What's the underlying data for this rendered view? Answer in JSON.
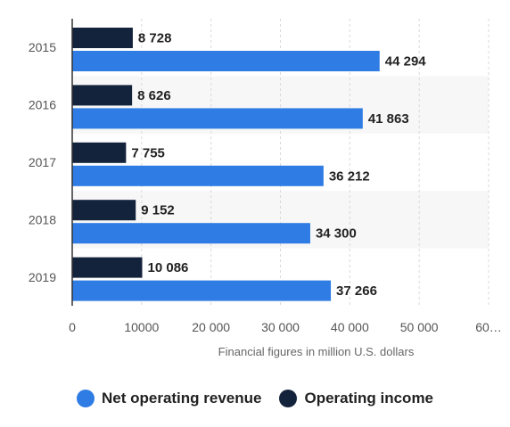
{
  "chart_data": {
    "type": "bar",
    "orientation": "horizontal",
    "categories": [
      "2015",
      "2016",
      "2017",
      "2018",
      "2019"
    ],
    "series": [
      {
        "name": "Operating income",
        "color": "#14233c",
        "values": [
          8728,
          8626,
          7755,
          9152,
          10086
        ],
        "labels": [
          "8 728",
          "8 626",
          "7 755",
          "9 152",
          "10 086"
        ]
      },
      {
        "name": "Net operating revenue",
        "color": "#2e7ce4",
        "values": [
          44294,
          41863,
          36212,
          34300,
          37266
        ],
        "labels": [
          "44 294",
          "41 863",
          "36 212",
          "34 300",
          "37 266"
        ]
      }
    ],
    "x_ticks": [
      "0",
      "10000",
      "20 000",
      "30 000",
      "40 000",
      "50 000",
      "60…"
    ],
    "xlim": [
      0,
      60000
    ],
    "xlabel": "Financial figures in million U.S. dollars",
    "grid": "vertical dashed",
    "legend": {
      "position": "bottom",
      "items": [
        {
          "label": "Net operating revenue",
          "color": "#2e7ce4"
        },
        {
          "label": "Operating income",
          "color": "#14233c"
        }
      ]
    }
  }
}
